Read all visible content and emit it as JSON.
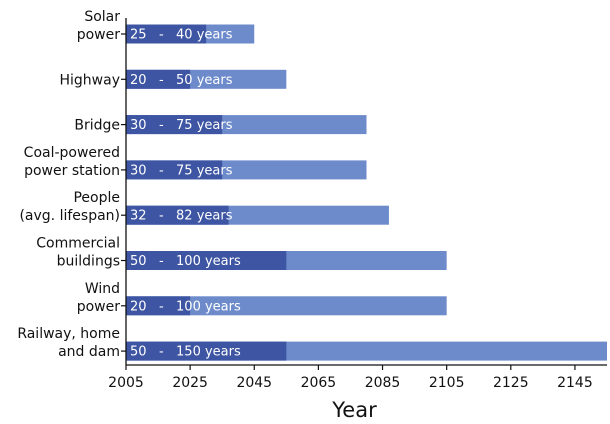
{
  "chart_data": {
    "type": "bar",
    "orientation": "horizontal",
    "xlabel": "Year",
    "xlim": [
      2005,
      2155
    ],
    "x_ticks": [
      "2005",
      "2025",
      "2045",
      "2065",
      "2085",
      "2105",
      "2125",
      "2145"
    ],
    "grid": false,
    "legend": "none",
    "colors": {
      "dark": "#3d55a2",
      "light": "#6d8bcb",
      "text": "#ffffff",
      "axis": "#111111"
    },
    "categories": [
      {
        "label": [
          "Solar",
          "power"
        ],
        "min": 25,
        "max": 40,
        "bar_label": "25   -   40 years"
      },
      {
        "label": [
          "Highway"
        ],
        "min": 20,
        "max": 50,
        "bar_label": "20   -   50 years"
      },
      {
        "label": [
          "Bridge"
        ],
        "min": 30,
        "max": 75,
        "bar_label": "30   -   75 years"
      },
      {
        "label": [
          "Coal-powered",
          "power station"
        ],
        "min": 30,
        "max": 75,
        "bar_label": "30   -   75 years"
      },
      {
        "label": [
          "People",
          "(avg. lifespan)"
        ],
        "min": 32,
        "max": 82,
        "bar_label": "32   -   82 years"
      },
      {
        "label": [
          "Commercial",
          "buildings"
        ],
        "min": 50,
        "max": 100,
        "bar_label": "50   -   100 years"
      },
      {
        "label": [
          "Wind",
          "power"
        ],
        "min": 20,
        "max": 100,
        "bar_label": "20   -   100 years"
      },
      {
        "label": [
          "Railway, home",
          "and dam"
        ],
        "min": 50,
        "max": 150,
        "bar_label": "50   -   150 years"
      }
    ]
  }
}
